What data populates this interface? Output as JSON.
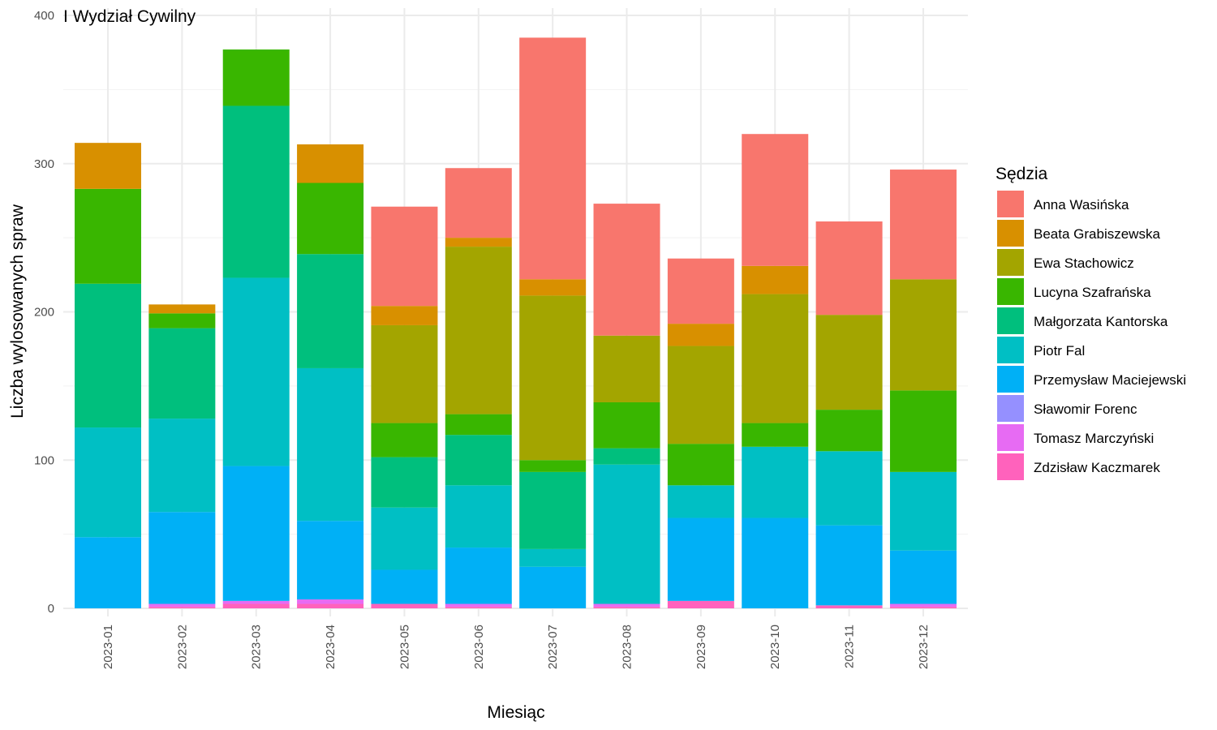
{
  "chart_data": {
    "type": "bar",
    "stacked": true,
    "title": "I Wydział Cywilny",
    "xlabel": "Miesiąc",
    "ylabel": "Liczba wylosowanych spraw",
    "ylim": [
      0,
      400
    ],
    "yticks": [
      0,
      100,
      200,
      300,
      400
    ],
    "grid": true,
    "legend": {
      "title": "Sędzia",
      "position": "right"
    },
    "categories": [
      "2023-01",
      "2023-02",
      "2023-03",
      "2023-04",
      "2023-05",
      "2023-06",
      "2023-07",
      "2023-08",
      "2023-09",
      "2023-10",
      "2023-11",
      "2023-12"
    ],
    "series": [
      {
        "name": "Anna Wasińska",
        "color": "#F8766D",
        "values": [
          0,
          0,
          0,
          0,
          67,
          47,
          163,
          89,
          44,
          89,
          63,
          74
        ]
      },
      {
        "name": "Beata Grabiszewska",
        "color": "#D89000",
        "values": [
          31,
          6,
          0,
          26,
          13,
          6,
          11,
          0,
          15,
          19,
          0,
          0
        ]
      },
      {
        "name": "Ewa Stachowicz",
        "color": "#A3A500",
        "values": [
          0,
          0,
          0,
          0,
          66,
          113,
          111,
          45,
          66,
          87,
          64,
          75
        ]
      },
      {
        "name": "Lucyna Szafrańska",
        "color": "#39B600",
        "values": [
          64,
          10,
          38,
          48,
          23,
          14,
          8,
          31,
          28,
          16,
          28,
          55
        ]
      },
      {
        "name": "Małgorzata Kantorska",
        "color": "#00BF7D",
        "values": [
          97,
          61,
          116,
          77,
          34,
          34,
          52,
          11,
          0,
          0,
          0,
          0
        ]
      },
      {
        "name": "Piotr Fal",
        "color": "#00BFC4",
        "values": [
          74,
          63,
          127,
          103,
          42,
          42,
          12,
          94,
          22,
          48,
          50,
          53
        ]
      },
      {
        "name": "Przemysław Maciejewski",
        "color": "#00B0F6",
        "values": [
          48,
          62,
          91,
          53,
          23,
          38,
          28,
          0,
          56,
          61,
          54,
          36
        ]
      },
      {
        "name": "Sławomir Forenc",
        "color": "#9590FF",
        "values": [
          0,
          0,
          0,
          0,
          0,
          0,
          0,
          0,
          0,
          0,
          0,
          0
        ]
      },
      {
        "name": "Tomasz Marczyński",
        "color": "#E76BF3",
        "values": [
          0,
          2,
          2,
          3,
          0,
          2,
          0,
          2,
          0,
          0,
          0,
          2
        ]
      },
      {
        "name": "Zdzisław Kaczmarek",
        "color": "#FF62BC",
        "values": [
          0,
          1,
          3,
          3,
          3,
          1,
          0,
          1,
          5,
          0,
          2,
          1
        ]
      }
    ]
  }
}
